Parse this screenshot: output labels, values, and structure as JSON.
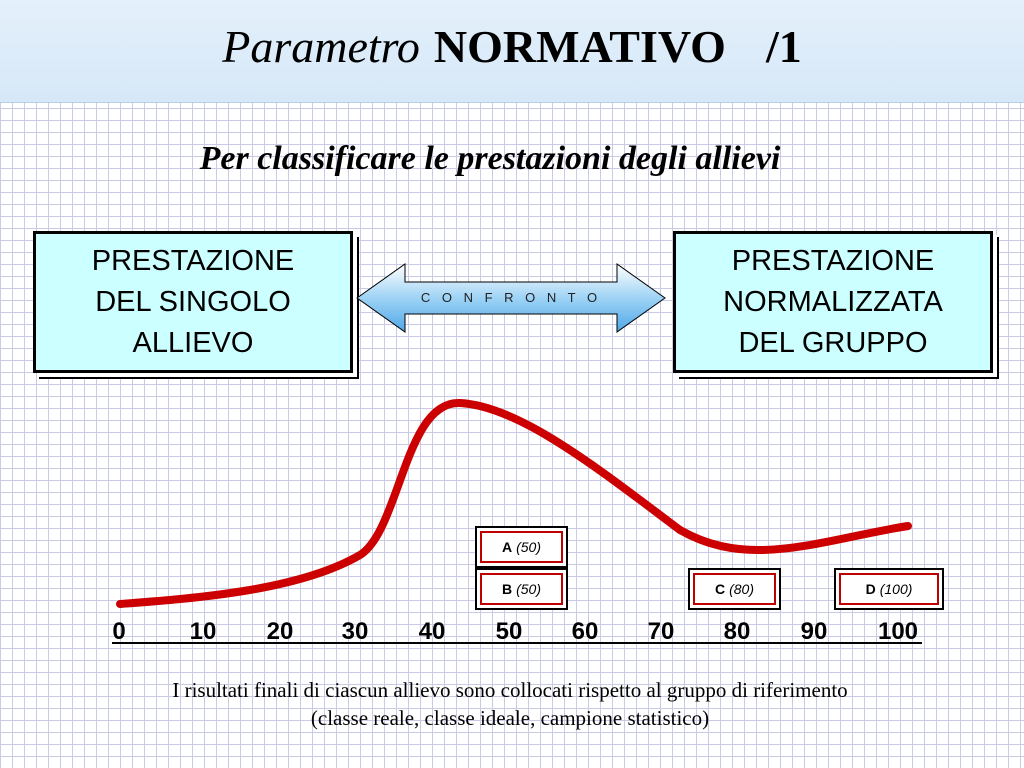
{
  "title": {
    "part1": "Parametro",
    "part2": "NORMATIVO",
    "part3": "/1"
  },
  "subtitle": "Per classificare le prestazioni degli allievi",
  "left_box": {
    "lines": [
      "PRESTAZIONE",
      "DEL SINGOLO",
      "ALLIEVO"
    ]
  },
  "right_box": {
    "lines": [
      "PRESTAZIONE",
      "NORMALIZZATA",
      "DEL GRUPPO"
    ]
  },
  "arrow_label": "C O N F R O N T O",
  "colors": {
    "box_fill": "#ccffff",
    "curve": "#cc0000",
    "grid": "#c9cbe6",
    "arrow_fill": "#9ed3f5"
  },
  "axis_ticks": [
    "0",
    "10",
    "20",
    "30",
    "40",
    "50",
    "60",
    "70",
    "80",
    "90",
    "100"
  ],
  "classes": [
    {
      "label": "A",
      "value": "(50)",
      "score": 50
    },
    {
      "label": "B",
      "value": "(50)",
      "score": 50
    },
    {
      "label": "C",
      "value": "(80)",
      "score": 80
    },
    {
      "label": "D",
      "value": "(100)",
      "score": 100
    }
  ],
  "footer": {
    "line1": "I risultati finali di ciascun allievo sono collocati rispetto al gruppo di riferimento",
    "line2": "(classe reale, classe ideale, campione statistico)"
  }
}
